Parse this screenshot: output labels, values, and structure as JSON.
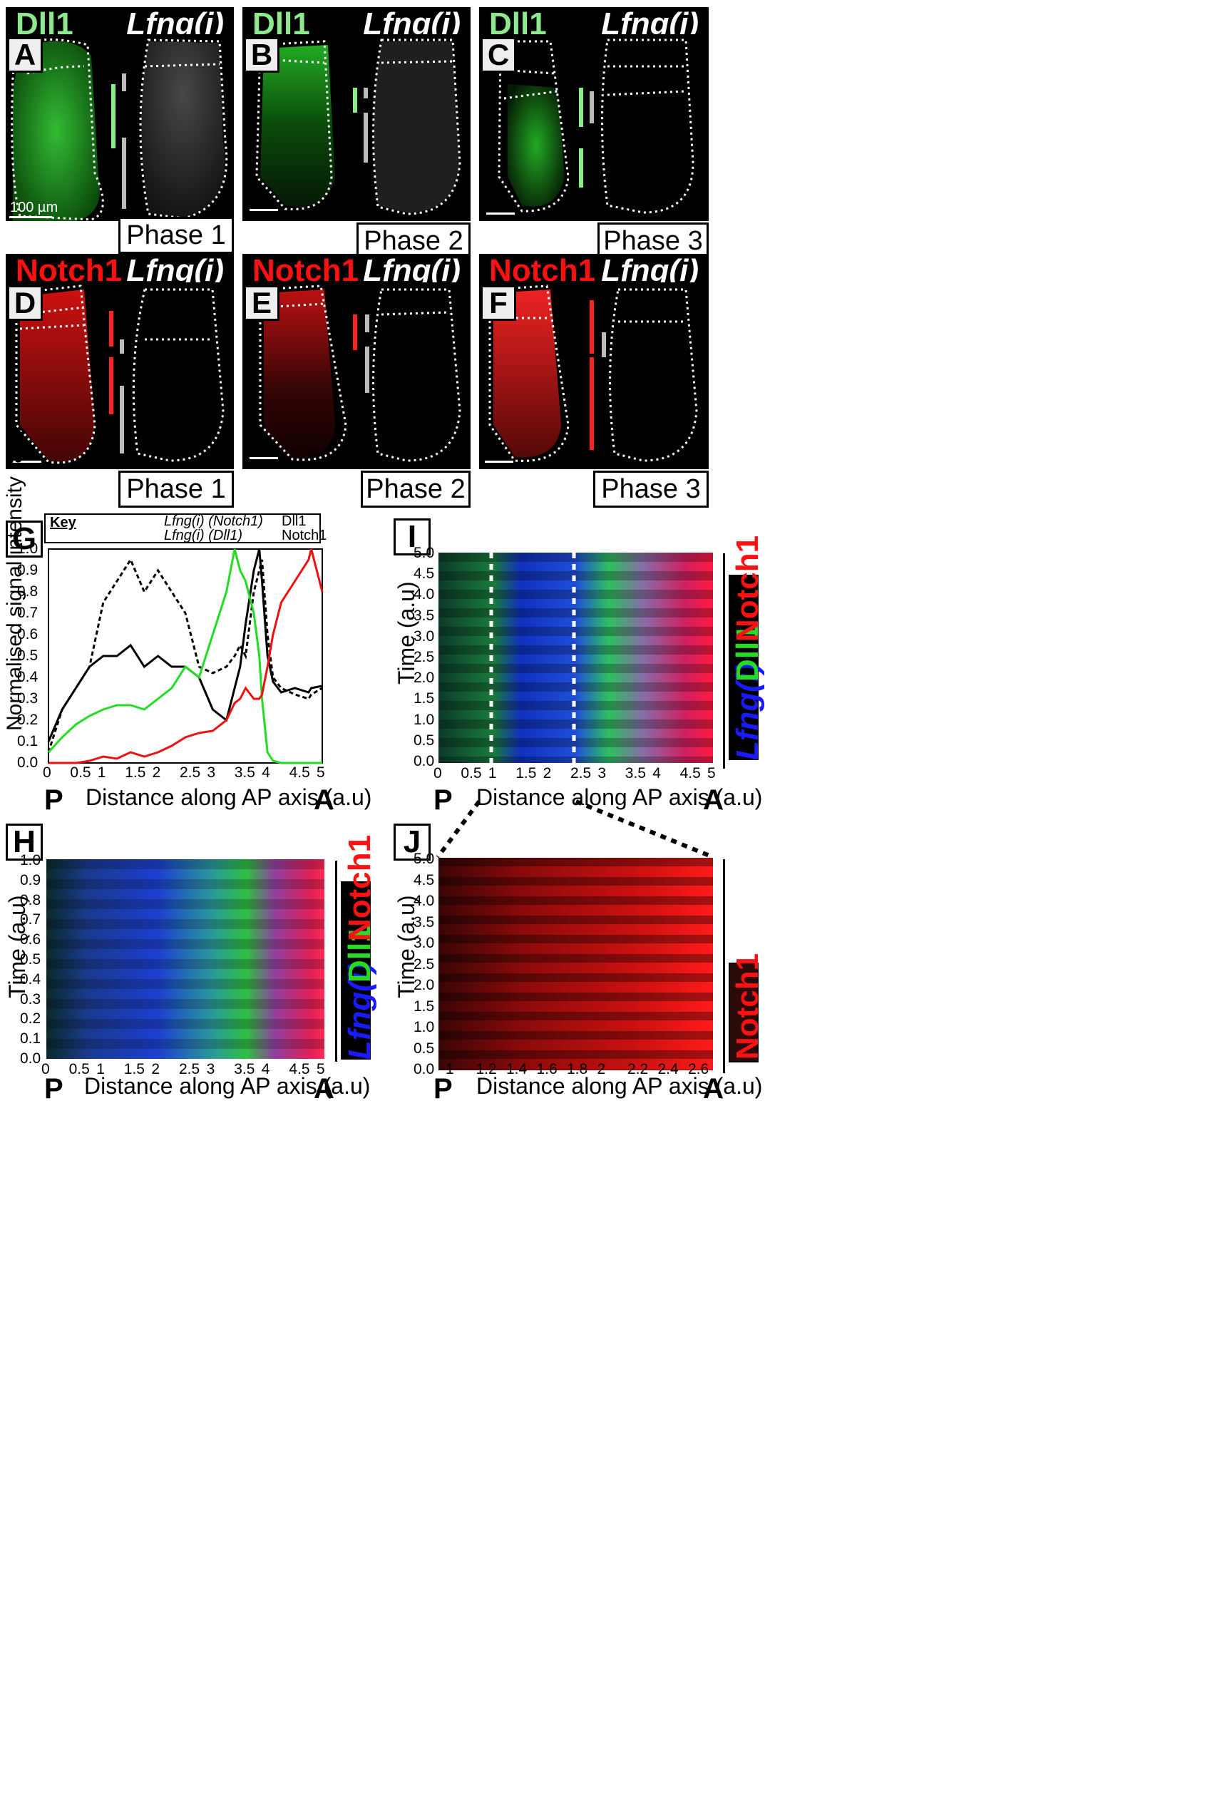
{
  "row1": {
    "panels": [
      {
        "letter": "A",
        "left_label": "Dll1",
        "right_label": "Lfng(i)",
        "phase": "Phase 1",
        "scale": "100 µm"
      },
      {
        "letter": "B",
        "left_label": "Dll1",
        "right_label": "Lfng(i)",
        "phase": "Phase 2"
      },
      {
        "letter": "C",
        "left_label": "Dll1",
        "right_label": "Lfng(i)",
        "phase": "Phase 3"
      }
    ]
  },
  "row2": {
    "panels": [
      {
        "letter": "D",
        "left_label": "Notch1",
        "right_label": "Lfng(i)",
        "phase": "Phase 1"
      },
      {
        "letter": "E",
        "left_label": "Notch1",
        "right_label": "Lfng(i)",
        "phase": "Phase 2"
      },
      {
        "letter": "F",
        "left_label": "Notch1",
        "right_label": "Lfng(i)",
        "phase": "Phase 3"
      }
    ]
  },
  "panelG": {
    "letter": "G",
    "key_title": "Key",
    "key_items": [
      "Lfng(i) (Notch1)",
      "Lfng(i) (Dll1)",
      "Dll1",
      "Notch1"
    ],
    "ylabel": "Normalised signal intensity (a.u)",
    "xlabel": "Distance along AP axis (a.u)",
    "p_label": "P",
    "a_label": "A",
    "xticks": [
      "0",
      "0.5",
      "1",
      "1.5",
      "2",
      "2.5",
      "3",
      "3.5",
      "4",
      "4.5",
      "5"
    ],
    "yticks": [
      "0.0",
      "0.1",
      "0.2",
      "0.3",
      "0.4",
      "0.5",
      "0.6",
      "0.7",
      "0.8",
      "0.9",
      "1.0"
    ]
  },
  "panelH": {
    "letter": "H",
    "ylabel": "Time (a.u)",
    "xlabel": "Distance along AP axis (a.u)",
    "p_label": "P",
    "a_label": "A",
    "xticks": [
      "0",
      "0.5",
      "1",
      "1.5",
      "2",
      "2.5",
      "3",
      "3.5",
      "4",
      "4.5",
      "5"
    ],
    "yticks": [
      "0.0",
      "0.1",
      "0.2",
      "0.3",
      "0.4",
      "0.5",
      "0.6",
      "0.7",
      "0.8",
      "0.9",
      "1.0"
    ],
    "side_lfng": "Lfng(i)",
    "side_dll1": "Dll1",
    "side_notch1": "Notch1"
  },
  "panelI": {
    "letter": "I",
    "ylabel": "Time (a.u)",
    "xlabel": "Distance along AP axis (a.u)",
    "p_label": "P",
    "a_label": "A",
    "xticks": [
      "0",
      "0.5",
      "1",
      "1.5",
      "2",
      "2.5",
      "3",
      "3.5",
      "4",
      "4.5",
      "5"
    ],
    "yticks": [
      "0.0",
      "0.5",
      "1.0",
      "1.5",
      "2.0",
      "2.5",
      "3.0",
      "3.5",
      "4.0",
      "4.5",
      "5.0"
    ],
    "side_lfng": "Lfng(i)",
    "side_dll1": "Dll1",
    "side_notch1": "Notch1"
  },
  "panelJ": {
    "letter": "J",
    "ylabel": "Time (a.u)",
    "xlabel": "Distance along AP axis (a.u)",
    "p_label": "P",
    "a_label": "A",
    "xticks": [
      "1",
      "1.2",
      "1.4",
      "1.6",
      "1.8",
      "2",
      "2.2",
      "2.4",
      "2.6"
    ],
    "yticks": [
      "0.0",
      "0.5",
      "1.0",
      "1.5",
      "2.0",
      "2.5",
      "3.0",
      "3.5",
      "4.0",
      "4.5",
      "5.0"
    ],
    "side_notch1": "Notch1"
  },
  "chart_data": [
    {
      "type": "line",
      "title": "G",
      "xlabel": "Distance along AP axis (a.u)",
      "ylabel": "Normalised signal intensity (a.u)",
      "xlim": [
        0,
        5
      ],
      "ylim": [
        0,
        1.0
      ],
      "x": [
        0,
        0.25,
        0.5,
        0.75,
        1.0,
        1.25,
        1.5,
        1.75,
        2.0,
        2.25,
        2.5,
        2.75,
        3.0,
        3.25,
        3.4,
        3.5,
        3.6,
        3.75,
        3.85,
        3.9,
        4.0,
        4.1,
        4.25,
        4.5,
        4.75,
        4.8,
        5.0
      ],
      "series": [
        {
          "name": "Lfng(i) (Notch1)",
          "color": "#000000",
          "dash": true,
          "values": [
            0.05,
            0.25,
            0.35,
            0.45,
            0.75,
            0.85,
            0.95,
            0.8,
            0.9,
            0.8,
            0.7,
            0.45,
            0.42,
            0.45,
            0.5,
            0.55,
            0.5,
            0.8,
            0.9,
            0.95,
            0.6,
            0.4,
            0.35,
            0.32,
            0.3,
            0.32,
            0.35
          ]
        },
        {
          "name": "Lfng(i) (Dll1)",
          "color": "#000000",
          "dash": false,
          "values": [
            0.1,
            0.25,
            0.35,
            0.45,
            0.5,
            0.5,
            0.55,
            0.45,
            0.5,
            0.45,
            0.45,
            0.4,
            0.25,
            0.2,
            0.35,
            0.45,
            0.65,
            0.9,
            1.0,
            0.85,
            0.5,
            0.38,
            0.33,
            0.35,
            0.33,
            0.35,
            0.36
          ]
        },
        {
          "name": "Dll1",
          "color": "#22dd22",
          "dash": false,
          "values": [
            0.05,
            0.12,
            0.18,
            0.22,
            0.25,
            0.27,
            0.27,
            0.25,
            0.3,
            0.35,
            0.45,
            0.4,
            0.6,
            0.8,
            1.0,
            0.9,
            0.85,
            0.7,
            0.5,
            0.3,
            0.05,
            0.01,
            0.0,
            0.0,
            0.0,
            0.0,
            0.0
          ]
        },
        {
          "name": "Notch1",
          "color": "#ee1111",
          "dash": false,
          "values": [
            0.0,
            0.0,
            0.0,
            0.01,
            0.03,
            0.02,
            0.05,
            0.03,
            0.05,
            0.08,
            0.12,
            0.14,
            0.15,
            0.2,
            0.28,
            0.3,
            0.35,
            0.3,
            0.3,
            0.32,
            0.45,
            0.6,
            0.75,
            0.85,
            0.95,
            1.0,
            0.8
          ]
        }
      ]
    },
    {
      "type": "heatmap",
      "title": "H",
      "xlabel": "Distance along AP axis (a.u)",
      "ylabel": "Time (a.u)",
      "xlim": [
        0,
        5
      ],
      "ylim": [
        0,
        1.0
      ]
    },
    {
      "type": "heatmap",
      "title": "I",
      "xlabel": "Distance along AP axis (a.u)",
      "ylabel": "Time (a.u)",
      "xlim": [
        0,
        5
      ],
      "ylim": [
        0,
        5.0
      ],
      "markers_x": [
        0.95,
        2.45
      ]
    },
    {
      "type": "heatmap",
      "title": "J",
      "xlabel": "Distance along AP axis (a.u)",
      "ylabel": "Time (a.u)",
      "xlim": [
        0.9,
        2.7
      ],
      "ylim": [
        0,
        5.0
      ]
    }
  ]
}
